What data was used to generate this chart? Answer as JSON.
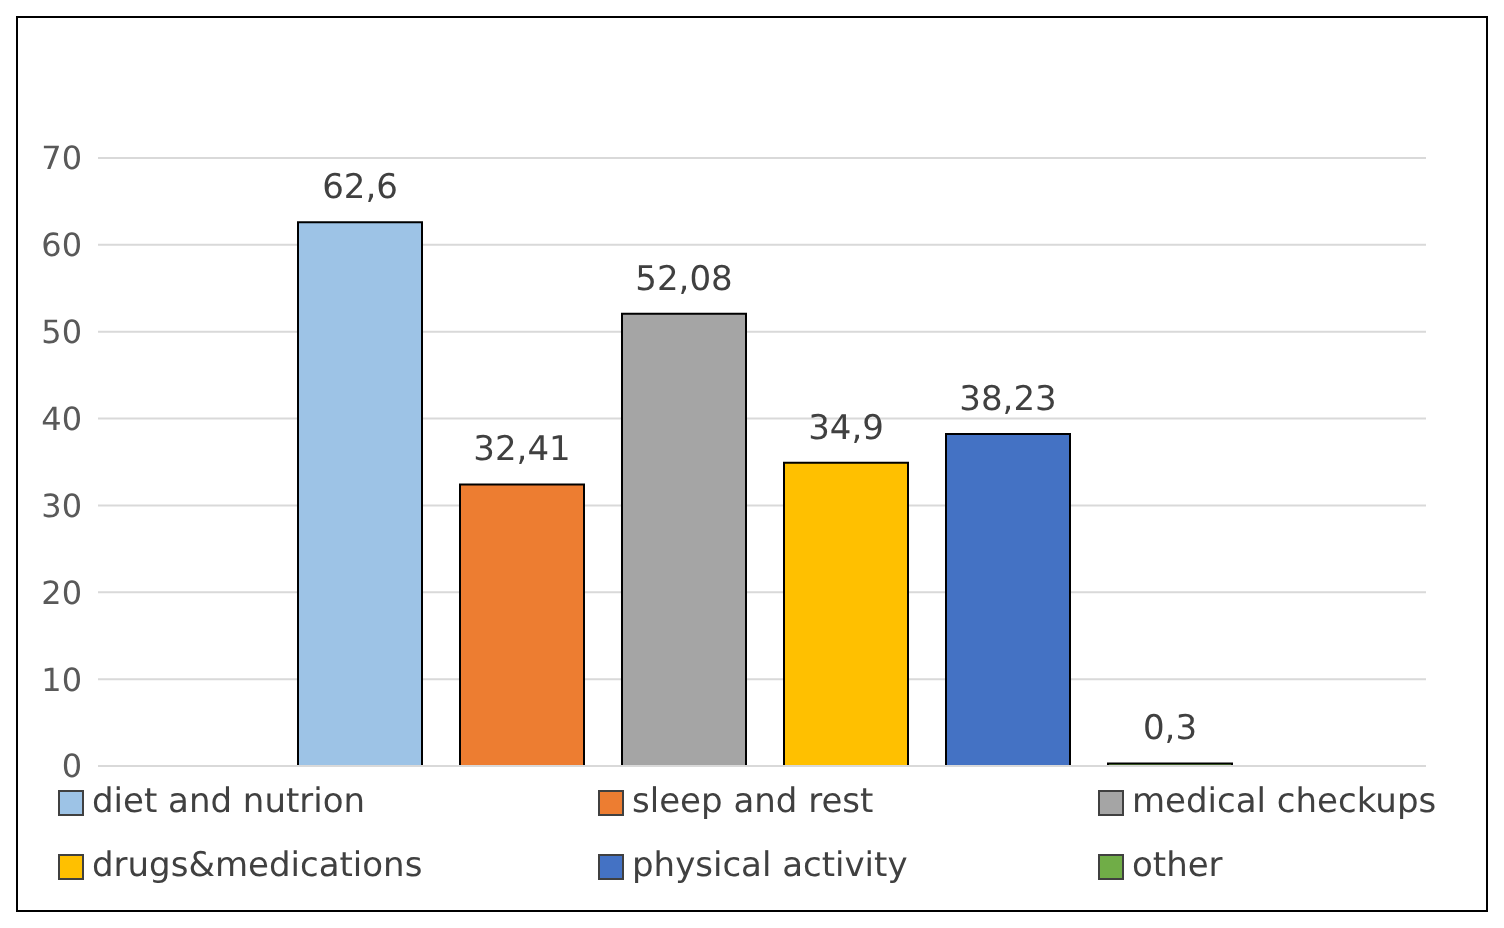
{
  "chart_data": {
    "type": "bar",
    "categories": [
      null
    ],
    "series": [
      {
        "name": "diet and nutrion",
        "color": "#9dc3e6",
        "values": [
          62.6
        ],
        "value_labels": [
          "62,6"
        ]
      },
      {
        "name": "sleep and rest",
        "color": "#ed7d31",
        "values": [
          32.41
        ],
        "value_labels": [
          "32,41"
        ]
      },
      {
        "name": "medical checkups",
        "color": "#a5a5a5",
        "values": [
          52.08
        ],
        "value_labels": [
          "52,08"
        ]
      },
      {
        "name": "drugs&medications",
        "color": "#ffc000",
        "values": [
          34.9
        ],
        "value_labels": [
          "34,9"
        ]
      },
      {
        "name": "physical activity",
        "color": "#4472c4",
        "values": [
          38.23
        ],
        "value_labels": [
          "38,23"
        ]
      },
      {
        "name": "other",
        "color": "#70ad47",
        "values": [
          0.3
        ],
        "value_labels": [
          "0,3"
        ]
      }
    ],
    "ylim": [
      0,
      70
    ],
    "yticks": [
      0,
      10,
      20,
      30,
      40,
      50,
      60,
      70
    ],
    "grid": "y",
    "legend": "bottom"
  }
}
